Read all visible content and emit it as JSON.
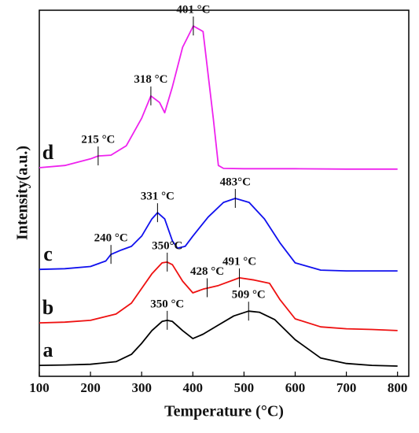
{
  "chart_data": {
    "type": "line",
    "x_label": "Temperature (°C)",
    "y_label": "Intensity(a.u.)",
    "xlim": [
      100,
      822
    ],
    "ylim": [
      0,
      100
    ],
    "xticks": [
      100,
      200,
      300,
      400,
      500,
      600,
      700,
      800
    ],
    "series": [
      {
        "name": "a",
        "color": "#000000",
        "x": [
          100,
          150,
          200,
          250,
          280,
          300,
          320,
          340,
          350,
          360,
          380,
          400,
          420,
          450,
          480,
          509,
          530,
          560,
          600,
          650,
          700,
          750,
          800
        ],
        "values": [
          3.0,
          3.1,
          3.3,
          4,
          6,
          9,
          12.5,
          15,
          15.3,
          15,
          12.5,
          10.3,
          11.5,
          14,
          16.5,
          17.8,
          17.5,
          15.5,
          10,
          5,
          3.5,
          3.0,
          2.8
        ]
      },
      {
        "name": "b",
        "color": "#ee1111",
        "x": [
          100,
          150,
          200,
          250,
          280,
          300,
          320,
          340,
          350,
          360,
          380,
          400,
          420,
          450,
          491,
          520,
          550,
          570,
          600,
          650,
          700,
          750,
          800
        ],
        "values": [
          14.6,
          14.8,
          15.3,
          17,
          20,
          24,
          28,
          31,
          31.2,
          30.5,
          26,
          22.8,
          23.8,
          24.8,
          26.9,
          26.3,
          25.4,
          21,
          15.7,
          13.5,
          13,
          12.8,
          12.5
        ]
      },
      {
        "name": "c",
        "color": "#1010ee",
        "x": [
          100,
          150,
          200,
          230,
          240,
          260,
          280,
          300,
          320,
          331,
          345,
          360,
          370,
          385,
          400,
          430,
          460,
          483,
          510,
          540,
          570,
          600,
          650,
          700,
          800
        ],
        "values": [
          29.2,
          29.4,
          30,
          31.5,
          33.3,
          34.5,
          35.5,
          38.3,
          43,
          44.7,
          43,
          37,
          35,
          35.5,
          38.3,
          43.5,
          47.5,
          48.6,
          47.5,
          43,
          36.5,
          31,
          29,
          28.8,
          28.8
        ]
      },
      {
        "name": "d",
        "color": "#ee22ee",
        "x": [
          100,
          150,
          200,
          215,
          240,
          270,
          300,
          318,
          335,
          345,
          360,
          380,
          401,
          420,
          440,
          450,
          460,
          500,
          600,
          700,
          800
        ],
        "values": [
          57,
          57.6,
          59.4,
          60.2,
          60.4,
          63,
          70.5,
          76.6,
          74.8,
          72,
          79.1,
          89.9,
          95.7,
          94.2,
          70.5,
          57.6,
          56.8,
          56.7,
          56.7,
          56.6,
          56.6
        ]
      }
    ],
    "annotations": [
      {
        "text": "350 °C",
        "x": 350,
        "y": 15.3
      },
      {
        "text": "509 °C",
        "x": 509,
        "y": 17.8
      },
      {
        "text": "350°C",
        "x": 350,
        "y": 31.2
      },
      {
        "text": "428 °C",
        "x": 428,
        "y": 24.2
      },
      {
        "text": "491 °C",
        "x": 491,
        "y": 26.9
      },
      {
        "text": "240 °C",
        "x": 240,
        "y": 33.3
      },
      {
        "text": "331 °C",
        "x": 331,
        "y": 44.7
      },
      {
        "text": "483°C",
        "x": 483,
        "y": 48.6
      },
      {
        "text": "215 °C",
        "x": 215,
        "y": 60.2
      },
      {
        "text": "318 °C",
        "x": 318,
        "y": 76.6
      },
      {
        "text": "401 °C",
        "x": 401,
        "y": 95.7
      }
    ]
  }
}
